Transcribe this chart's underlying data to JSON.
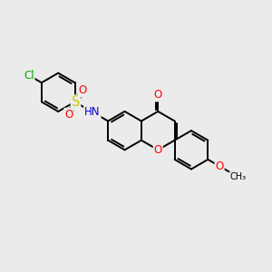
{
  "bg_color": "#ebebeb",
  "bond_color": "#000000",
  "bond_width": 1.4,
  "atom_colors": {
    "O": "#ff0000",
    "N": "#0000cd",
    "S": "#cccc00",
    "Cl": "#00aa00",
    "C": "#000000"
  },
  "font_size": 8.5,
  "fig_bg": "#ebebeb",
  "xlim": [
    0,
    10
  ],
  "ylim": [
    0,
    10
  ]
}
